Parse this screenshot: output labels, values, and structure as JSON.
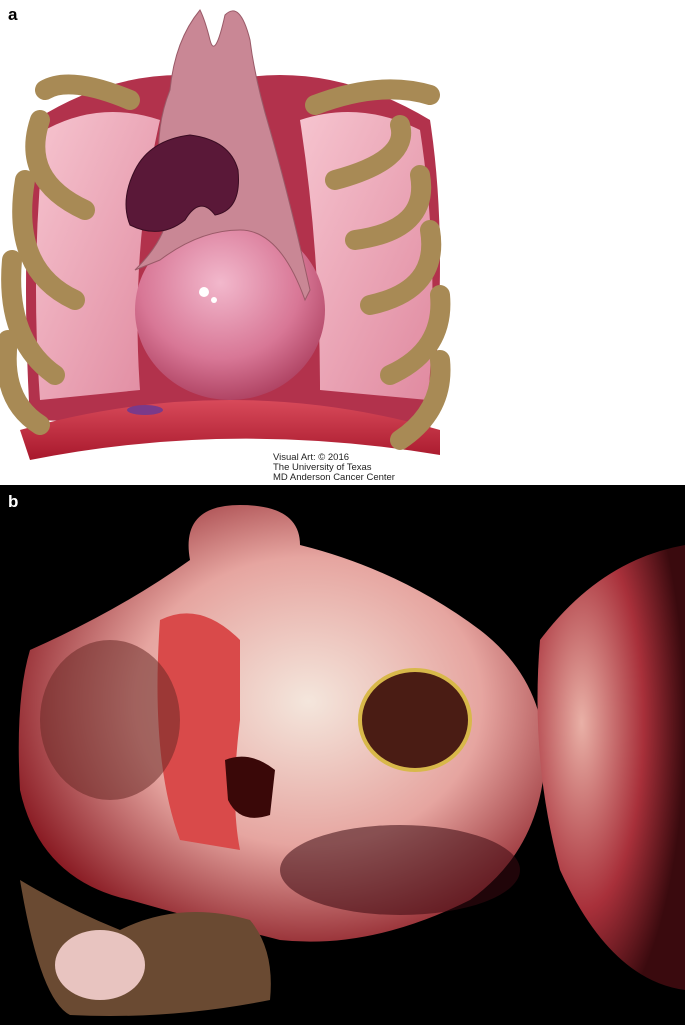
{
  "panels": [
    {
      "label": "a",
      "credit": [
        "Visual Art: © 2016",
        "The University of Texas",
        "MD Anderson Cancer Center"
      ]
    },
    {
      "label": "b"
    }
  ]
}
